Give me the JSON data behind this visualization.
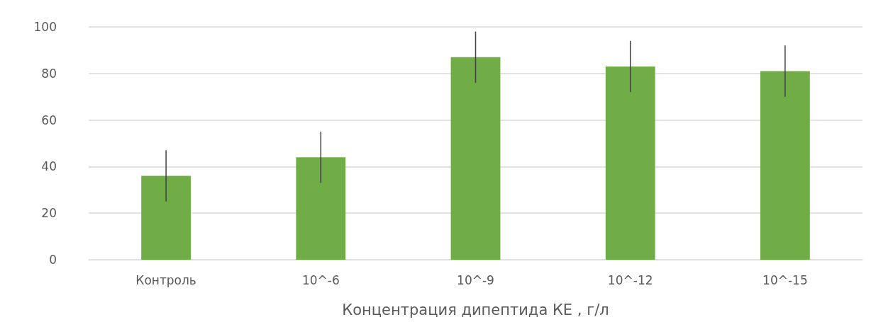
{
  "chart_data": {
    "type": "bar",
    "xlabel": "Концентрация дипептида КЕ , г/л",
    "categories": [
      "Контроль",
      "10^-6",
      "10^-9",
      "10^-12",
      "10^-15"
    ],
    "values": [
      36,
      44,
      87,
      83,
      81
    ],
    "errors": [
      11,
      11,
      11,
      11,
      11
    ],
    "color": "#70ad47",
    "ylim": [
      0,
      100
    ],
    "yticks": [
      0,
      20,
      40,
      60,
      80,
      100
    ],
    "grid": "y"
  }
}
